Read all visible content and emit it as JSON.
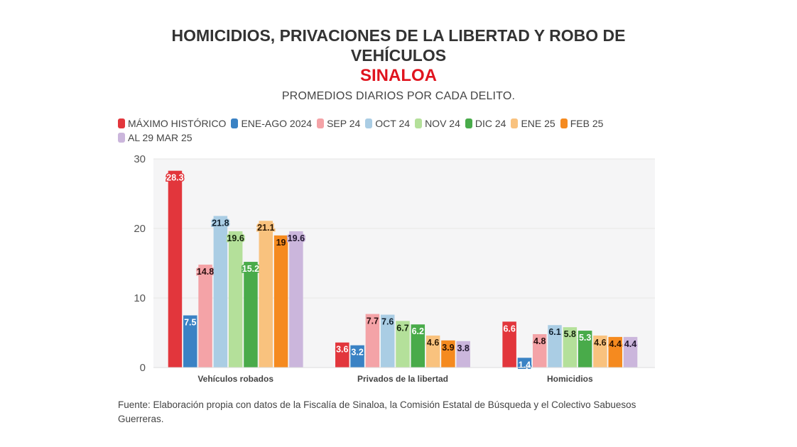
{
  "header": {
    "title_line1": "HOMICIDIOS, PRIVACIONES DE LA LIBERTAD Y ROBO DE",
    "title_line2": "VEHÍCULOS",
    "region": "SINALOA",
    "subtitle": "PROMEDIOS DIARIOS POR CADA DELITO."
  },
  "footer": {
    "source": "Fuente: Elaboración propia con datos de la Fiscalía de Sinaloa, la Comisión Estatal de Búsqueda y el Colectivo Sabuesos Guerreras."
  },
  "colors": {
    "title": "#333333",
    "region": "#e0141e",
    "plot_background": "#f5f5f6",
    "gridline": "#e6e6e6"
  },
  "chart_data": {
    "type": "bar",
    "title": "HOMICIDIOS, PRIVACIONES DE LA LIBERTAD Y ROBO DE VEHÍCULOS — SINALOA",
    "subtitle": "PROMEDIOS DIARIOS POR CADA DELITO.",
    "xlabel": "",
    "ylabel": "",
    "ylim": [
      0,
      30
    ],
    "yticks": [
      0,
      10,
      20,
      30
    ],
    "grid": true,
    "legend_position": "top-left",
    "categories": [
      "Vehículos robados",
      "Privados de la libertad",
      "Homicidios"
    ],
    "series": [
      {
        "name": "MÁXIMO HISTÓRICO",
        "color": "#e2363c",
        "label_color": "#ffffff",
        "values": [
          28.3,
          3.6,
          6.6
        ]
      },
      {
        "name": "ENE-AGO 2024",
        "color": "#3a82c4",
        "label_color": "#ffffff",
        "values": [
          7.5,
          3.2,
          1.4
        ]
      },
      {
        "name": "SEP 24",
        "color": "#f4a3a7",
        "label_color": "#2b0f10",
        "values": [
          14.8,
          7.7,
          4.8
        ]
      },
      {
        "name": "OCT 24",
        "color": "#aacde4",
        "label_color": "#10202e",
        "values": [
          21.8,
          7.6,
          6.1
        ]
      },
      {
        "name": "NOV 24",
        "color": "#b4e09a",
        "label_color": "#14240c",
        "values": [
          19.6,
          6.7,
          5.8
        ]
      },
      {
        "name": "DIC 24",
        "color": "#49ab4a",
        "label_color": "#ffffff",
        "values": [
          15.2,
          6.2,
          5.3
        ]
      },
      {
        "name": "ENE 25",
        "color": "#f9c27e",
        "label_color": "#2e1a05",
        "values": [
          21.1,
          4.6,
          4.6
        ]
      },
      {
        "name": "FEB 25",
        "color": "#f58a1f",
        "label_color": "#2a1200",
        "values": [
          19,
          3.9,
          4.4
        ]
      },
      {
        "name": "AL 29 MAR 25",
        "color": "#cbb6dc",
        "label_color": "#221830",
        "values": [
          19.6,
          3.8,
          4.4
        ]
      }
    ]
  }
}
